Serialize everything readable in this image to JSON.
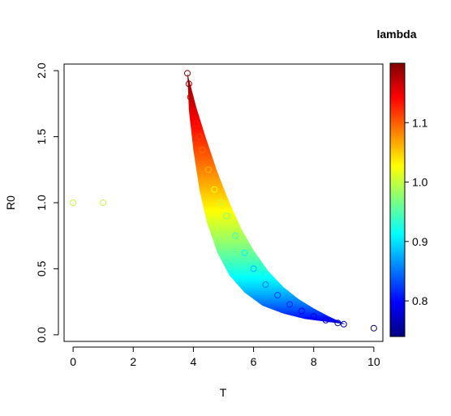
{
  "chart_data": {
    "type": "scatter",
    "xlabel": "T",
    "ylabel": "R0",
    "xlim": [
      -0.3,
      10.3
    ],
    "ylim": [
      -0.05,
      2.05
    ],
    "x_ticks": [
      0,
      2,
      4,
      6,
      8,
      10
    ],
    "y_ticks": [
      0.0,
      0.5,
      1.0,
      1.5,
      2.0
    ],
    "x_tick_labels": [
      "0",
      "2",
      "4",
      "6",
      "8",
      "10"
    ],
    "y_tick_labels": [
      "0.0",
      "0.5",
      "1.0",
      "1.5",
      "2.0"
    ],
    "colorbar": {
      "title": "lambda",
      "range": [
        0.74,
        1.2
      ],
      "ticks": [
        0.8,
        0.9,
        1.0,
        1.1
      ],
      "tick_labels": [
        "0.8",
        "0.9",
        "1.0",
        "1.1"
      ],
      "palette": [
        "#00007F",
        "#0000FF",
        "#007FFF",
        "#00FFFF",
        "#7FFF7F",
        "#FFFF00",
        "#FF7F00",
        "#FF0000",
        "#7F0000"
      ]
    },
    "grid": false,
    "legend_position": "right",
    "points": [
      {
        "x": 0,
        "y": 1.0,
        "lambda": 1.0
      },
      {
        "x": 1,
        "y": 1.0,
        "lambda": 1.0
      },
      {
        "x": 3.8,
        "y": 1.98,
        "lambda": 1.2
      },
      {
        "x": 3.85,
        "y": 1.9,
        "lambda": 1.19
      },
      {
        "x": 3.9,
        "y": 1.8,
        "lambda": 1.17
      },
      {
        "x": 4.0,
        "y": 1.7,
        "lambda": 1.15
      },
      {
        "x": 4.1,
        "y": 1.6,
        "lambda": 1.13
      },
      {
        "x": 4.2,
        "y": 1.5,
        "lambda": 1.11
      },
      {
        "x": 4.3,
        "y": 1.4,
        "lambda": 1.09
      },
      {
        "x": 4.5,
        "y": 1.25,
        "lambda": 1.06
      },
      {
        "x": 4.7,
        "y": 1.1,
        "lambda": 1.02
      },
      {
        "x": 4.9,
        "y": 1.0,
        "lambda": 1.0
      },
      {
        "x": 5.1,
        "y": 0.9,
        "lambda": 0.97
      },
      {
        "x": 5.4,
        "y": 0.75,
        "lambda": 0.94
      },
      {
        "x": 5.7,
        "y": 0.62,
        "lambda": 0.91
      },
      {
        "x": 6.0,
        "y": 0.5,
        "lambda": 0.88
      },
      {
        "x": 6.4,
        "y": 0.38,
        "lambda": 0.85
      },
      {
        "x": 6.8,
        "y": 0.3,
        "lambda": 0.83
      },
      {
        "x": 7.2,
        "y": 0.23,
        "lambda": 0.81
      },
      {
        "x": 7.6,
        "y": 0.18,
        "lambda": 0.79
      },
      {
        "x": 8.0,
        "y": 0.14,
        "lambda": 0.78
      },
      {
        "x": 8.4,
        "y": 0.11,
        "lambda": 0.77
      },
      {
        "x": 8.8,
        "y": 0.09,
        "lambda": 0.76
      },
      {
        "x": 9.0,
        "y": 0.08,
        "lambda": 0.75
      },
      {
        "x": 10,
        "y": 0.05,
        "lambda": 0.74
      }
    ],
    "band": {
      "upper": [
        [
          3.8,
          1.98
        ],
        [
          4.1,
          1.72
        ],
        [
          4.4,
          1.5
        ],
        [
          4.8,
          1.23
        ],
        [
          5.2,
          1.0
        ],
        [
          5.6,
          0.8
        ],
        [
          6.0,
          0.64
        ],
        [
          6.5,
          0.48
        ],
        [
          7.0,
          0.36
        ],
        [
          7.5,
          0.27
        ],
        [
          8.0,
          0.2
        ],
        [
          8.5,
          0.14
        ],
        [
          9.05,
          0.08
        ]
      ],
      "lower": [
        [
          3.8,
          1.98
        ],
        [
          3.85,
          1.7
        ],
        [
          4.0,
          1.4
        ],
        [
          4.2,
          1.1
        ],
        [
          4.45,
          0.85
        ],
        [
          4.8,
          0.62
        ],
        [
          5.2,
          0.45
        ],
        [
          5.7,
          0.32
        ],
        [
          6.3,
          0.22
        ],
        [
          7.0,
          0.16
        ],
        [
          7.7,
          0.12
        ],
        [
          8.4,
          0.1
        ],
        [
          9.05,
          0.08
        ]
      ]
    }
  }
}
